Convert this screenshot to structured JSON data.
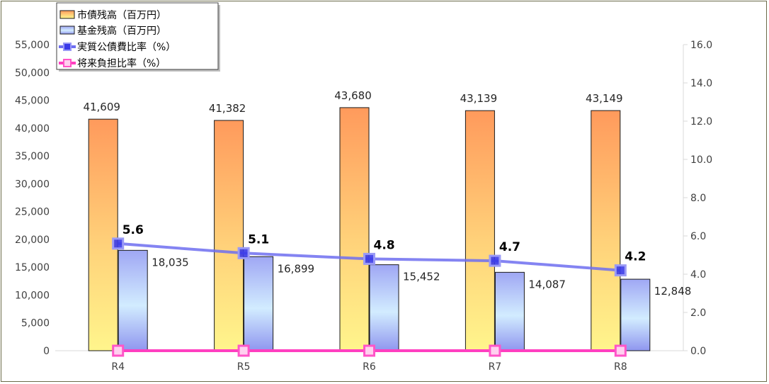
{
  "chart_data": {
    "type": "bar",
    "categories": [
      "R4",
      "R5",
      "R6",
      "R7",
      "R8"
    ],
    "left_axis": {
      "ylim": [
        0,
        55000
      ],
      "ticks": [
        "0",
        "5,000",
        "10,000",
        "15,000",
        "20,000",
        "25,000",
        "30,000",
        "35,000",
        "40,000",
        "45,000",
        "50,000",
        "55,000"
      ]
    },
    "right_axis": {
      "ylim": [
        0,
        16
      ],
      "ticks": [
        "0.0",
        "2.0",
        "4.0",
        "6.0",
        "8.0",
        "10.0",
        "12.0",
        "14.0",
        "16.0"
      ]
    },
    "series": [
      {
        "name": "市債残高（百万円）",
        "kind": "bar",
        "axis": "left",
        "values": [
          41609,
          41382,
          43680,
          43139,
          43149
        ],
        "labels": [
          "41,609",
          "41,382",
          "43,680",
          "43,139",
          "43,149"
        ]
      },
      {
        "name": "基金残高（百万円）",
        "kind": "bar",
        "axis": "left",
        "values": [
          18035,
          16899,
          15452,
          14087,
          12848
        ],
        "labels": [
          "18,035",
          "16,899",
          "15,452",
          "14,087",
          "12,848"
        ]
      },
      {
        "name": "実質公債費比率（%）",
        "kind": "line",
        "axis": "right",
        "values": [
          5.6,
          5.1,
          4.8,
          4.7,
          4.2
        ],
        "labels": [
          "5.6",
          "5.1",
          "4.8",
          "4.7",
          "4.2"
        ],
        "color": "#6e6ef0"
      },
      {
        "name": "将来負担比率（%）",
        "kind": "line",
        "axis": "right",
        "values": [
          0,
          0,
          0,
          0,
          0
        ],
        "labels": [],
        "color": "#ff3fc0"
      }
    ],
    "legend_position": "top-left",
    "grid": false
  }
}
